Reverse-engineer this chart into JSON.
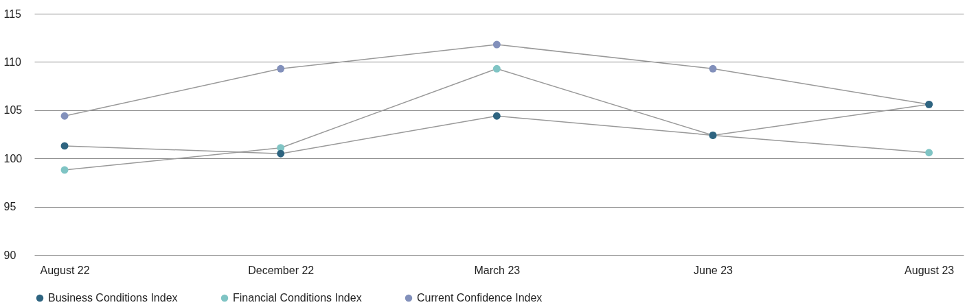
{
  "chart_data": {
    "type": "line",
    "categories": [
      "August 22",
      "December 22",
      "March 23",
      "June 23",
      "August 23"
    ],
    "series": [
      {
        "name": "Business Conditions Index",
        "color": "#2e6480",
        "values": [
          101.3,
          100.5,
          104.4,
          102.4,
          105.6
        ]
      },
      {
        "name": "Financial Conditions Index",
        "color": "#7fc4c4",
        "values": [
          98.8,
          101.1,
          109.3,
          102.4,
          100.6
        ]
      },
      {
        "name": "Current Confidence Index",
        "color": "#8290bb",
        "values": [
          104.4,
          109.3,
          111.8,
          109.3,
          105.6
        ]
      }
    ],
    "ylim": [
      90,
      115
    ],
    "yticks": [
      90,
      95,
      100,
      105,
      110,
      115
    ],
    "grid": "y",
    "legend": "bottom",
    "marker": "circle",
    "line_style": "solid"
  }
}
